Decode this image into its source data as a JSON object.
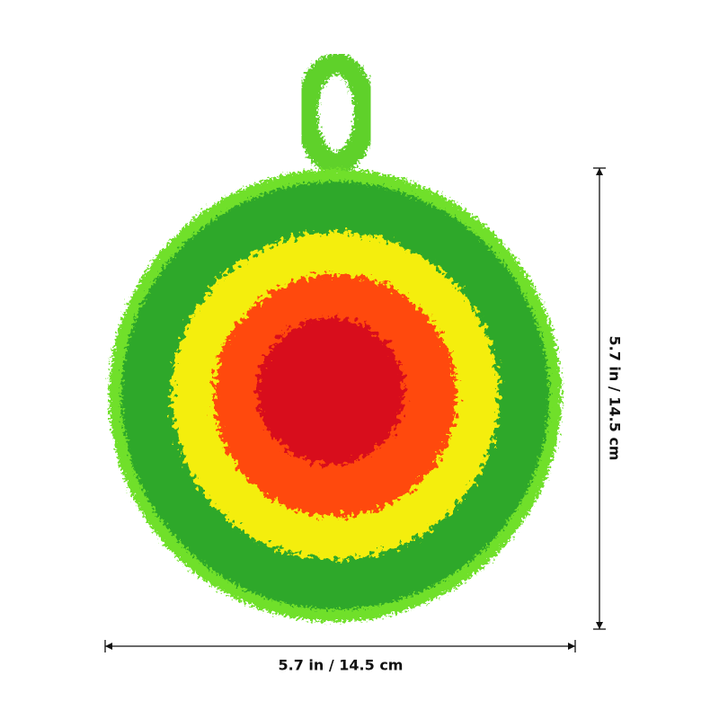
{
  "dimensions": {
    "width": "5.7 in / 14.5 cm",
    "height": "5.7 in / 14.5 cm"
  }
}
